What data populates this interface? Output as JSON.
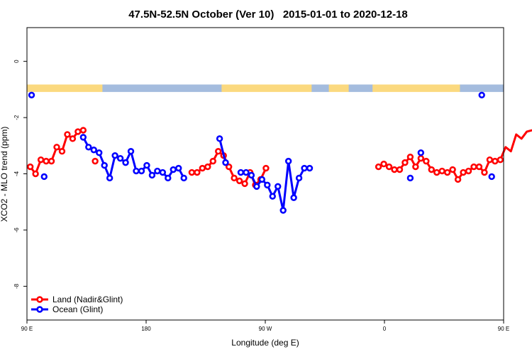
{
  "chart_data": {
    "type": "line",
    "title": "47.5N-52.5N October (Ver 10)   2015-01-01 to 2020-12-18",
    "xlabel": "Longitude (deg E)",
    "ylabel": "XCO2 - MLO trend (ppm)",
    "xlim": [
      90,
      450
    ],
    "ylim": [
      -9.2,
      1.2
    ],
    "x_ticks": [
      {
        "value": 90,
        "label": "90 E"
      },
      {
        "value": 180,
        "label": "180"
      },
      {
        "value": 270,
        "label": "90 W"
      },
      {
        "value": 360,
        "label": "0"
      },
      {
        "value": 450,
        "label": "90 E"
      },
      {
        "value": 540,
        "label": "180"
      }
    ],
    "y_ticks": [
      {
        "value": 0,
        "label": "0"
      },
      {
        "value": -2,
        "label": "-2"
      },
      {
        "value": -4,
        "label": "-4"
      },
      {
        "value": -6,
        "label": "-6"
      },
      {
        "value": -8,
        "label": "-8"
      }
    ],
    "grid": false,
    "legend_position": "bottom-left",
    "land_ocean_mask": {
      "y_center": -0.95,
      "land_color": "#fbd97f",
      "ocean_color": "#a4bcde",
      "segments": [
        {
          "type": "land",
          "from": 90,
          "to": 147
        },
        {
          "type": "ocean",
          "from": 147,
          "to": 237
        },
        {
          "type": "land",
          "from": 237,
          "to": 305
        },
        {
          "type": "ocean",
          "from": 305,
          "to": 318
        },
        {
          "type": "land",
          "from": 318,
          "to": 333
        },
        {
          "type": "ocean",
          "from": 333,
          "to": 351
        },
        {
          "type": "land",
          "from": 351,
          "to": 417
        },
        {
          "type": "ocean",
          "from": 417,
          "to": 454
        },
        {
          "type": "land",
          "from": 454,
          "to": 474
        },
        {
          "type": "ocean",
          "from": 474,
          "to": 477
        },
        {
          "type": "land",
          "from": 477,
          "to": 498
        },
        {
          "type": "ocean",
          "from": 498,
          "to": 500
        },
        {
          "type": "land",
          "from": 500,
          "to": 525
        },
        {
          "type": "ocean",
          "from": 525,
          "to": 540
        }
      ]
    },
    "series": [
      {
        "name": "Land (Nadir&Glint)",
        "color": "#ff0000",
        "points": [
          [
            [
              92.5,
              -3.75
            ],
            [
              96.5,
              -4.0
            ],
            [
              100.5,
              -3.5
            ],
            [
              104.5,
              -3.55
            ],
            [
              108.5,
              -3.55
            ],
            [
              112.5,
              -3.05
            ],
            [
              116.5,
              -3.2
            ],
            [
              120.5,
              -2.6
            ],
            [
              124.5,
              -2.75
            ],
            [
              128.5,
              -2.5
            ],
            [
              132.5,
              -2.45
            ]
          ],
          [
            [
              141.5,
              -3.55
            ]
          ],
          [
            [
              214.5,
              -3.95
            ],
            [
              218.5,
              -3.95
            ],
            [
              222.5,
              -3.8
            ],
            [
              226.5,
              -3.75
            ],
            [
              230.5,
              -3.55
            ],
            [
              234.5,
              -3.2
            ],
            [
              238.5,
              -3.35
            ],
            [
              242.5,
              -3.75
            ],
            [
              246.5,
              -4.15
            ],
            [
              250.5,
              -4.25
            ],
            [
              254.5,
              -4.35
            ],
            [
              258.5,
              -3.95
            ],
            [
              262.5,
              -4.4
            ],
            [
              266.5,
              -4.2
            ],
            [
              270.5,
              -3.8
            ]
          ],
          [
            [
              355.5,
              -3.75
            ],
            [
              359.5,
              -3.65
            ],
            [
              363.5,
              -3.75
            ],
            [
              367.5,
              -3.85
            ],
            [
              371.5,
              -3.85
            ],
            [
              375.5,
              -3.6
            ],
            [
              379.5,
              -3.4
            ],
            [
              383.5,
              -3.75
            ],
            [
              387.5,
              -3.45
            ],
            [
              391.5,
              -3.55
            ],
            [
              395.5,
              -3.85
            ],
            [
              399.5,
              -3.95
            ],
            [
              403.5,
              -3.9
            ],
            [
              407.5,
              -3.95
            ],
            [
              411.5,
              -3.85
            ],
            [
              415.5,
              -4.2
            ],
            [
              419.5,
              -3.95
            ],
            [
              423.5,
              -3.9
            ],
            [
              427.5,
              -3.75
            ],
            [
              431.5,
              -3.75
            ],
            [
              435.5,
              -3.95
            ],
            [
              439.5,
              -3.5
            ],
            [
              443.5,
              -3.55
            ],
            [
              447.5,
              -3.5
            ],
            [
              451.5,
              -3.05
            ],
            [
              455.5,
              -3.2
            ],
            [
              459.5,
              -2.6
            ],
            [
              463.5,
              -2.75
            ],
            [
              467.5,
              -2.5
            ],
            [
              471.5,
              -2.45
            ]
          ]
        ]
      },
      {
        "name": "Ocean (Glint)",
        "color": "#0000ff",
        "points": [
          [
            [
              93.5,
              -1.2
            ]
          ],
          [
            [
              103,
              -4.1
            ]
          ],
          [
            [
              132.5,
              -2.7
            ],
            [
              136.5,
              -3.05
            ],
            [
              140.5,
              -3.15
            ],
            [
              144.5,
              -3.25
            ],
            [
              148.5,
              -3.7
            ],
            [
              152.5,
              -4.15
            ],
            [
              156.5,
              -3.35
            ],
            [
              160.5,
              -3.45
            ],
            [
              164.5,
              -3.6
            ],
            [
              168.5,
              -3.2
            ],
            [
              172.5,
              -3.9
            ],
            [
              176.5,
              -3.9
            ],
            [
              180.5,
              -3.7
            ],
            [
              184.5,
              -4.05
            ],
            [
              188.5,
              -3.9
            ],
            [
              192.5,
              -3.95
            ],
            [
              196.5,
              -4.15
            ],
            [
              200.5,
              -3.85
            ],
            [
              204.5,
              -3.8
            ],
            [
              208.5,
              -4.15
            ]
          ],
          [
            [
              235.5,
              -2.75
            ],
            [
              240,
              -3.6
            ]
          ],
          [
            [
              251.5,
              -3.95
            ],
            [
              255.5,
              -3.95
            ],
            [
              259.5,
              -4.05
            ],
            [
              263.5,
              -4.45
            ],
            [
              267.5,
              -4.2
            ],
            [
              271.5,
              -4.4
            ],
            [
              275.5,
              -4.8
            ],
            [
              279.5,
              -4.45
            ],
            [
              283.5,
              -5.3
            ],
            [
              287.5,
              -3.55
            ],
            [
              291.5,
              -4.85
            ],
            [
              295.5,
              -4.15
            ],
            [
              299.5,
              -3.8
            ],
            [
              303.5,
              -3.8
            ]
          ],
          [
            [
              379.5,
              -4.15
            ]
          ],
          [
            [
              387.5,
              -3.25
            ]
          ],
          [
            [
              433.5,
              -1.2
            ]
          ],
          [
            [
              441,
              -4.1
            ]
          ]
        ]
      }
    ]
  }
}
